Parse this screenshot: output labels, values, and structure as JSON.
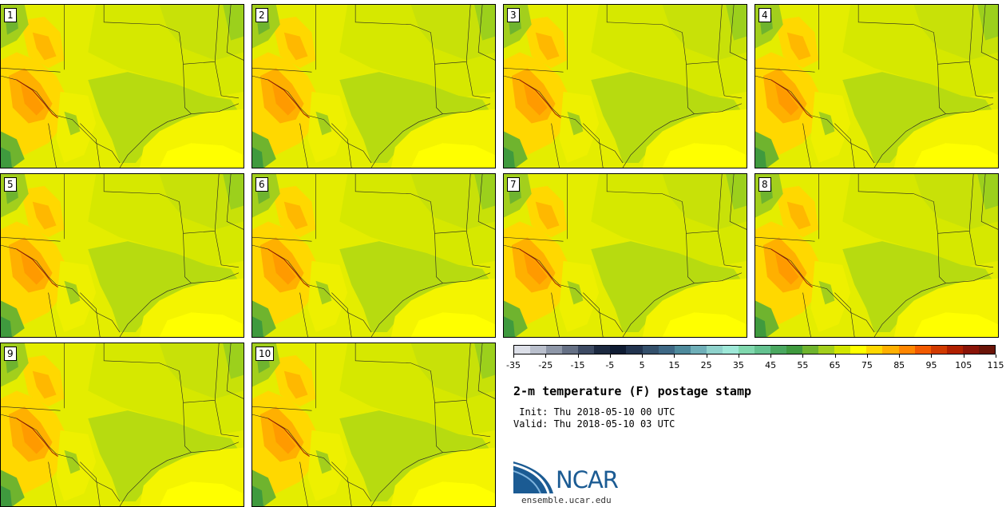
{
  "panels": [
    {
      "label": "1"
    },
    {
      "label": "2"
    },
    {
      "label": "3"
    },
    {
      "label": "4"
    },
    {
      "label": "5"
    },
    {
      "label": "6"
    },
    {
      "label": "7"
    },
    {
      "label": "8"
    },
    {
      "label": "9"
    },
    {
      "label": "10"
    }
  ],
  "colorbar": {
    "colors": [
      "#dcdfe8",
      "#b9bfcc",
      "#8e97a8",
      "#657085",
      "#3d4a63",
      "#1c2940",
      "#0f1c33",
      "#22344f",
      "#34506b",
      "#3e6885",
      "#4e8a9c",
      "#6fafb8",
      "#8fd2cc",
      "#9ee8d8",
      "#80d8ae",
      "#64c290",
      "#4aa860",
      "#3f9a3e",
      "#6fb42e",
      "#a3cf1c",
      "#d2e600",
      "#ffff00",
      "#ffd800",
      "#ffb000",
      "#ff8600",
      "#f25a00",
      "#d13a00",
      "#b02000",
      "#8a1408",
      "#6a1408"
    ],
    "tick_labels": [
      "-35",
      "-25",
      "-15",
      "-5",
      "5",
      "15",
      "25",
      "35",
      "45",
      "55",
      "65",
      "75",
      "85",
      "95",
      "105",
      "115"
    ]
  },
  "title": "2-m temperature (F) postage stamp",
  "init": " Init: Thu 2018-05-10 00 UTC",
  "valid": "Valid: Thu 2018-05-10 03 UTC",
  "logo": {
    "text": "NCAR",
    "site": "ensemble.ucar.edu",
    "color": "#1b5b93"
  }
}
